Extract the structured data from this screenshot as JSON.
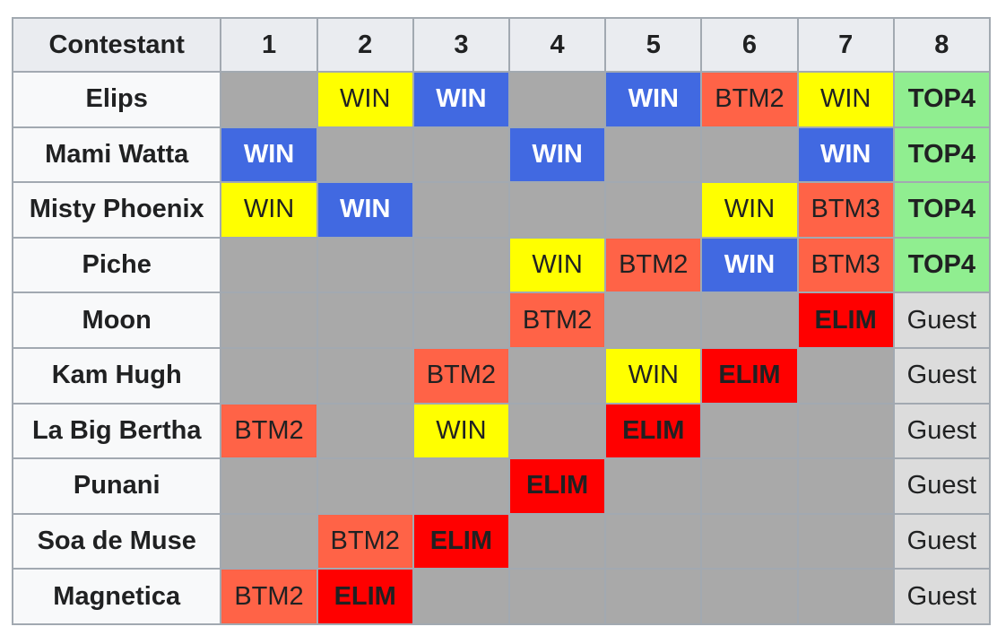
{
  "table": {
    "headers": [
      "Contestant",
      "1",
      "2",
      "3",
      "4",
      "5",
      "6",
      "7",
      "8"
    ],
    "rows": [
      {
        "name": "Elips",
        "cells": [
          "",
          "WIN",
          "WIN",
          "",
          "WIN",
          "BTM2",
          "WIN",
          "TOP4"
        ],
        "types": [
          "empty",
          "win",
          "winb",
          "empty",
          "winb",
          "btm",
          "win",
          "top4"
        ]
      },
      {
        "name": "Mami Watta",
        "cells": [
          "WIN",
          "",
          "",
          "WIN",
          "",
          "",
          "WIN",
          "TOP4"
        ],
        "types": [
          "winb",
          "empty",
          "empty",
          "winb",
          "empty",
          "empty",
          "winb",
          "top4"
        ]
      },
      {
        "name": "Misty Phoenix",
        "cells": [
          "WIN",
          "WIN",
          "",
          "",
          "",
          "WIN",
          "BTM3",
          "TOP4"
        ],
        "types": [
          "win",
          "winb",
          "empty",
          "empty",
          "empty",
          "win",
          "btm",
          "top4"
        ]
      },
      {
        "name": "Piche",
        "cells": [
          "",
          "",
          "",
          "WIN",
          "BTM2",
          "WIN",
          "BTM3",
          "TOP4"
        ],
        "types": [
          "empty",
          "empty",
          "empty",
          "win",
          "btm",
          "winb",
          "btm",
          "top4"
        ]
      },
      {
        "name": "Moon",
        "cells": [
          "",
          "",
          "",
          "BTM2",
          "",
          "",
          "ELIM",
          "Guest"
        ],
        "types": [
          "empty",
          "empty",
          "empty",
          "btm",
          "empty",
          "empty",
          "elim",
          "guest"
        ]
      },
      {
        "name": "Kam Hugh",
        "cells": [
          "",
          "",
          "BTM2",
          "",
          "WIN",
          "ELIM",
          "",
          "Guest"
        ],
        "types": [
          "empty",
          "empty",
          "btm",
          "empty",
          "win",
          "elim",
          "empty",
          "guest"
        ]
      },
      {
        "name": "La Big Bertha",
        "cells": [
          "BTM2",
          "",
          "WIN",
          "",
          "ELIM",
          "",
          "",
          "Guest"
        ],
        "types": [
          "btm",
          "empty",
          "win",
          "empty",
          "elim",
          "empty",
          "empty",
          "guest"
        ]
      },
      {
        "name": "Punani",
        "cells": [
          "",
          "",
          "",
          "ELIM",
          "",
          "",
          "",
          "Guest"
        ],
        "types": [
          "empty",
          "empty",
          "empty",
          "elim",
          "empty",
          "empty",
          "empty",
          "guest"
        ]
      },
      {
        "name": "Soa de Muse",
        "cells": [
          "",
          "BTM2",
          "ELIM",
          "",
          "",
          "",
          "",
          "Guest"
        ],
        "types": [
          "empty",
          "btm",
          "elim",
          "empty",
          "empty",
          "empty",
          "empty",
          "guest"
        ]
      },
      {
        "name": "Magnetica",
        "cells": [
          "BTM2",
          "ELIM",
          "",
          "",
          "",
          "",
          "",
          "Guest"
        ],
        "types": [
          "btm",
          "elim",
          "empty",
          "empty",
          "empty",
          "empty",
          "empty",
          "guest"
        ]
      }
    ]
  },
  "colors": {
    "win": "#ffff00",
    "win_blue": "#4169e1",
    "bottom": "#ff6347",
    "elim": "#ff0000",
    "top4": "#90ee90",
    "guest": "#dcdcdc",
    "not_featured": "#a9a9a9",
    "header_bg": "#eaecf0",
    "border": "#a2a9b1"
  }
}
